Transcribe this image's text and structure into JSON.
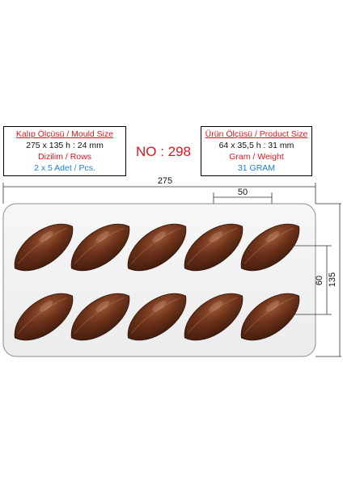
{
  "mould_box": {
    "title": "Kalıp Ölçüsü / Mould Size",
    "size": "275 x 135 h : 24 mm",
    "rows_label": "Dizilim / Rows",
    "rows_value": "2 x 5 Adet / Pcs."
  },
  "model": {
    "number": "NO : 298"
  },
  "product_box": {
    "title": "Ürün Ölçüsü / Product Size",
    "size": "64 x 35,5 h : 31 mm",
    "weight_label": "Gram / Weight",
    "weight_value": "31 GRAM"
  },
  "dimensions": {
    "width": "275",
    "cavity_pitch": "50",
    "row_pitch": "60",
    "height": "135"
  },
  "mould": {
    "rows": 2,
    "columns": 5,
    "chocolate_color": "#6b3119",
    "tray_color": "#f4f4f4"
  }
}
